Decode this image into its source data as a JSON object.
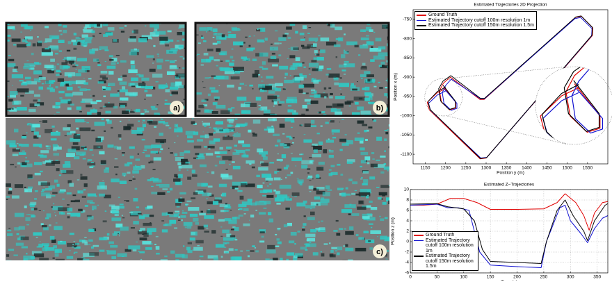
{
  "panels": [
    {
      "label": "a)"
    },
    {
      "label": "b)"
    },
    {
      "label": "c)"
    }
  ],
  "chart_data": [
    {
      "type": "line",
      "title": "Estimated Trajectories 2D Projection",
      "xlabel": "Position y (m)",
      "ylabel": "Position x (m)",
      "xlim": [
        1120,
        1600
      ],
      "xticks": [
        1150,
        1200,
        1250,
        1300,
        1350,
        1400,
        1450,
        1500,
        1550
      ],
      "ylim": [
        -1125,
        -725
      ],
      "yticks": [
        -750,
        -800,
        -850,
        -900,
        -950,
        -1000,
        -1050,
        -1100
      ],
      "legend": "upper left",
      "grid": false,
      "series": [
        {
          "name": "Ground Truth",
          "color": "#e00000",
          "x": [
            1200,
            1180,
            1155,
            1160,
            1285,
            1300,
            1562,
            1563,
            1535,
            1520,
            1295,
            1285,
            1212,
            1195,
            1185,
            1190,
            1210,
            1225,
            1225,
            1195
          ],
          "values": [
            -930,
            -940,
            -965,
            -985,
            -1112,
            -1110,
            -792,
            -772,
            -742,
            -745,
            -958,
            -958,
            -900,
            -915,
            -935,
            -965,
            -985,
            -980,
            -965,
            -925
          ]
        },
        {
          "name": "Estimated Trajectory cutoff 100m resolution 1m",
          "color": "#1010d0",
          "x": [
            1200,
            1180,
            1158,
            1163,
            1287,
            1302,
            1560,
            1561,
            1533,
            1519,
            1296,
            1286,
            1214,
            1200,
            1192,
            1196,
            1214,
            1228,
            1228,
            1198
          ],
          "values": [
            -936,
            -946,
            -968,
            -986,
            -1110,
            -1108,
            -793,
            -774,
            -745,
            -748,
            -956,
            -956,
            -905,
            -922,
            -940,
            -968,
            -986,
            -981,
            -968,
            -932
          ]
        },
        {
          "name": "Estimated Trajectory cutoff 150m resolution 1.5m",
          "color": "#000000",
          "x": [
            1200,
            1180,
            1157,
            1162,
            1286,
            1301,
            1561,
            1562,
            1534,
            1521,
            1296,
            1286,
            1213,
            1194,
            1183,
            1188,
            1209,
            1224,
            1224,
            1194
          ],
          "values": [
            -926,
            -937,
            -963,
            -984,
            -1111,
            -1109,
            -791,
            -771,
            -741,
            -744,
            -955,
            -955,
            -896,
            -910,
            -930,
            -962,
            -984,
            -979,
            -962,
            -921
          ]
        }
      ]
    },
    {
      "type": "line",
      "title": "Estimated Z−Trajectories",
      "xlabel": "Time (s)",
      "ylabel": "Position z (m)",
      "xlim": [
        0,
        370
      ],
      "xticks": [
        0,
        50,
        100,
        150,
        200,
        250,
        300,
        350
      ],
      "ylim": [
        -6,
        10
      ],
      "yticks": [
        -6,
        -4,
        -2,
        0,
        2,
        4,
        6,
        8,
        10
      ],
      "legend": "lower left",
      "grid": true,
      "series": [
        {
          "name": "Ground Truth",
          "color": "#e00000",
          "x": [
            0,
            25,
            50,
            75,
            100,
            125,
            150,
            200,
            250,
            275,
            290,
            310,
            325,
            335,
            345,
            360,
            370
          ],
          "values": [
            7,
            7,
            7.2,
            8.3,
            8.3,
            7.5,
            6.2,
            6.2,
            6.3,
            7.5,
            9.2,
            7.5,
            5,
            2.2,
            5.5,
            7.5,
            7.7
          ]
        },
        {
          "name": "Estimated Trajectory cutoff 100m resolution 1m",
          "color": "#1010d0",
          "x": [
            0,
            50,
            70,
            90,
            110,
            130,
            150,
            200,
            245,
            255,
            280,
            290,
            300,
            320,
            332,
            345,
            360,
            370
          ],
          "values": [
            7,
            7.2,
            6.5,
            6.5,
            6,
            -2,
            -4.5,
            -4.8,
            -5,
            0,
            6.5,
            7,
            4,
            1.5,
            -0.2,
            2.5,
            4.5,
            5
          ]
        },
        {
          "name": "Estimated Trajectory cutoff 150m resolution 1.5m",
          "color": "#000000",
          "x": [
            0,
            50,
            70,
            100,
            120,
            135,
            150,
            200,
            245,
            255,
            275,
            290,
            305,
            325,
            332,
            345,
            365,
            370
          ],
          "values": [
            7.2,
            7.3,
            6.7,
            6.3,
            4,
            -1.5,
            -3.8,
            -4,
            -4.2,
            0,
            6,
            8,
            5,
            2,
            0.2,
            4,
            7,
            7.3
          ]
        }
      ]
    }
  ]
}
